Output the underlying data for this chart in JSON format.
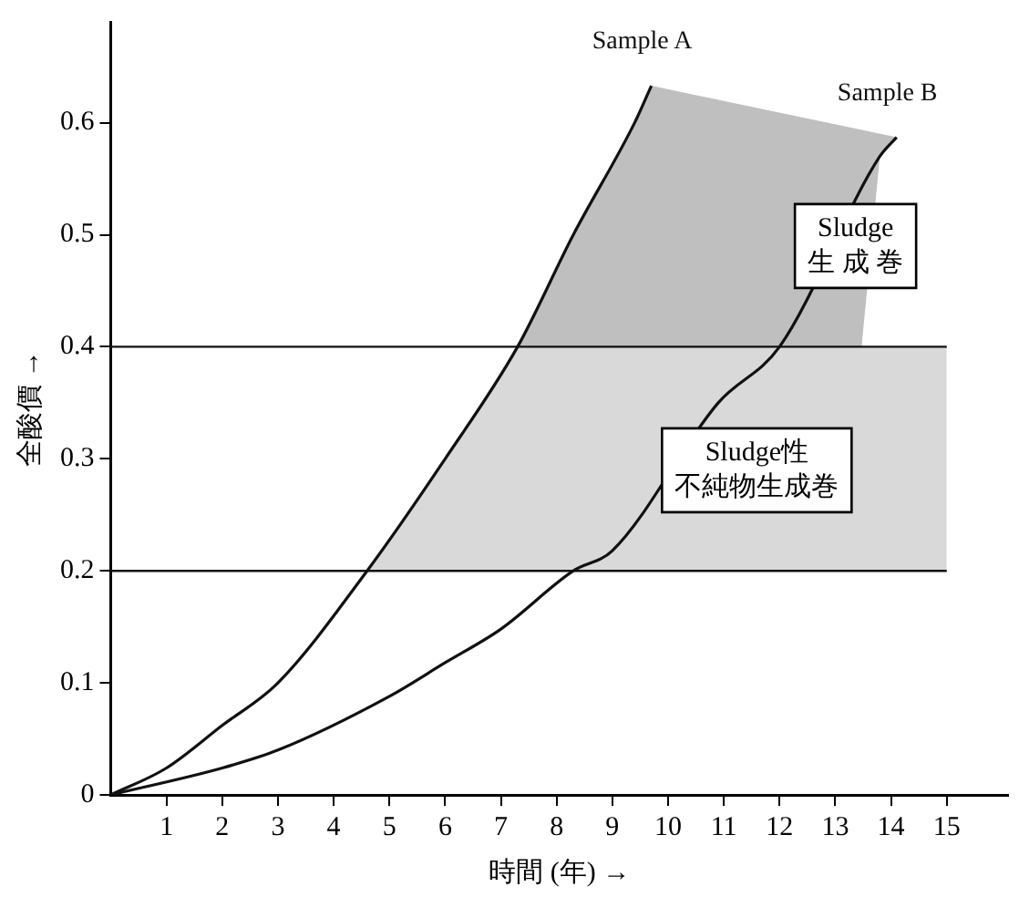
{
  "chart_data": {
    "type": "line",
    "xlabel": "時間 (年) →",
    "ylabel": "全酸價 →",
    "xlim": [
      0,
      16.1
    ],
    "xticks": [
      1,
      2,
      3,
      4,
      5,
      6,
      7,
      8,
      9,
      10,
      11,
      12,
      13,
      14,
      15
    ],
    "ylim": [
      0,
      0.69
    ],
    "yticks": [
      0,
      0.1,
      0.2,
      0.3,
      0.4,
      0.5,
      0.6
    ],
    "series": [
      {
        "name": "Sample A",
        "color": "#111111",
        "x": [
          0,
          1,
          2,
          3,
          4.6,
          6,
          7.3,
          8.3,
          9.4,
          9.7
        ],
        "values": [
          0,
          0.024,
          0.062,
          0.1,
          0.2,
          0.3,
          0.4,
          0.5,
          0.6,
          0.633
        ]
      },
      {
        "name": "Sample B",
        "color": "#111111",
        "x": [
          0,
          2,
          3,
          5,
          6,
          7,
          8.3,
          9,
          10.9,
          12,
          12.7,
          13.8,
          14.1
        ],
        "values": [
          0,
          0.024,
          0.04,
          0.088,
          0.118,
          0.148,
          0.2,
          0.218,
          0.35,
          0.4,
          null,
          0.57,
          0.587
        ]
      }
    ],
    "ref_lines": [
      {
        "axis": "y",
        "value": 0.2,
        "color": "#111111"
      },
      {
        "axis": "y",
        "value": 0.4,
        "color": "#111111"
      }
    ],
    "bands": [
      {
        "axis": "y",
        "from": 0.2,
        "to": 0.4,
        "color": "#d9d9d9"
      },
      {
        "axis": "y",
        "from": 0.4,
        "to": 0.69,
        "color": "#bfbfbf"
      }
    ],
    "annotations": [
      "Sludge",
      "生 成 巻",
      "Sludge性",
      "不純物生成巻"
    ],
    "grid": false,
    "legend": false,
    "marker": "none",
    "line_style": "solid"
  }
}
